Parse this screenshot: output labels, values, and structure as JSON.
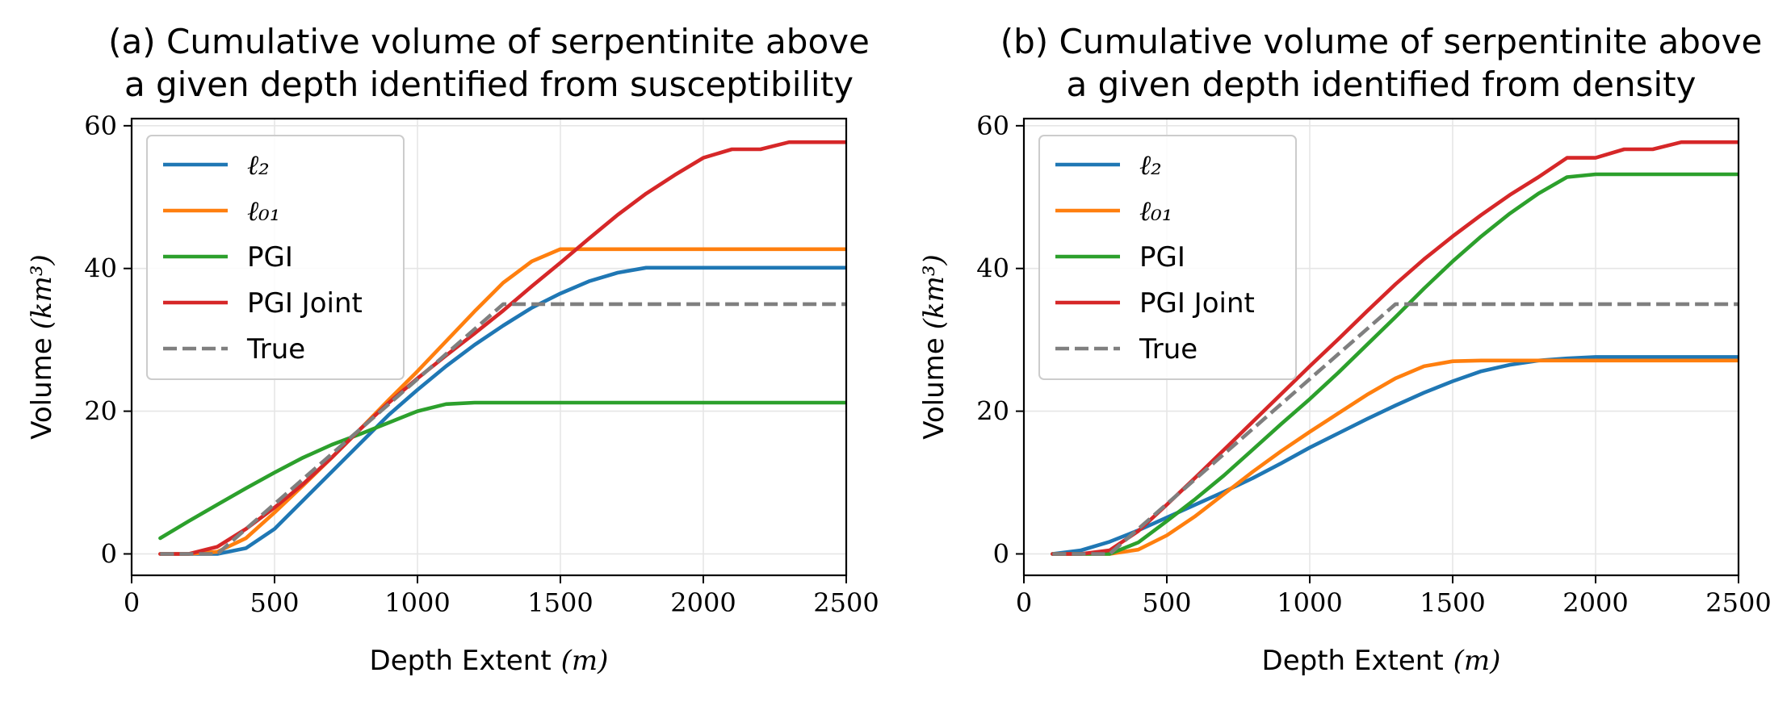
{
  "chart_data": [
    {
      "type": "line",
      "title_lines": [
        "(a) Cumulative volume of serpentinite above",
        "a given depth identified from susceptibility"
      ],
      "xlabel": "Depth Extent",
      "xlabel_unit": "(m)",
      "ylabel": "Volume",
      "ylabel_unit": "(km³)",
      "xlim": [
        0,
        2500
      ],
      "ylim": [
        -3,
        61
      ],
      "xticks": [
        0,
        500,
        1000,
        1500,
        2000,
        2500
      ],
      "yticks": [
        0,
        20,
        40,
        60
      ],
      "grid": true,
      "legend_position": "upper-left",
      "series": [
        {
          "name": "ℓ₂",
          "color": "#1f77b4",
          "dash": "solid",
          "x": [
            100,
            200,
            300,
            400,
            500,
            600,
            700,
            800,
            900,
            1000,
            1100,
            1200,
            1300,
            1400,
            1500,
            1600,
            1700,
            1800,
            1900,
            2000,
            2100,
            2200,
            2300,
            2400,
            2500
          ],
          "y": [
            0,
            0,
            0,
            0.8,
            3.5,
            7.5,
            11.5,
            15.5,
            19.5,
            23,
            26.3,
            29.3,
            32,
            34.5,
            36.5,
            38.2,
            39.4,
            40.1,
            40.1,
            40.1,
            40.1,
            40.1,
            40.1,
            40.1,
            40.1
          ]
        },
        {
          "name": "ℓ₀₁",
          "color": "#ff7f0e",
          "dash": "solid",
          "x": [
            100,
            200,
            300,
            400,
            500,
            600,
            700,
            800,
            900,
            1000,
            1100,
            1200,
            1300,
            1400,
            1500,
            1600,
            1700,
            1800,
            1900,
            2000,
            2100,
            2200,
            2300,
            2400,
            2500
          ],
          "y": [
            0,
            0,
            0.3,
            2.2,
            5.8,
            9.6,
            13.5,
            17.5,
            21.6,
            25.6,
            29.8,
            34,
            38,
            41,
            42.7,
            42.7,
            42.7,
            42.7,
            42.7,
            42.7,
            42.7,
            42.7,
            42.7,
            42.7,
            42.7
          ]
        },
        {
          "name": "PGI",
          "color": "#2ca02c",
          "dash": "solid",
          "x": [
            100,
            200,
            300,
            400,
            500,
            600,
            700,
            800,
            900,
            1000,
            1100,
            1200,
            1300,
            1400,
            1500,
            1600,
            1700,
            1800,
            1900,
            2000,
            2100,
            2200,
            2300,
            2400,
            2500
          ],
          "y": [
            2.2,
            4.6,
            6.9,
            9.2,
            11.4,
            13.5,
            15.3,
            16.8,
            18.4,
            20,
            21,
            21.2,
            21.2,
            21.2,
            21.2,
            21.2,
            21.2,
            21.2,
            21.2,
            21.2,
            21.2,
            21.2,
            21.2,
            21.2,
            21.2
          ]
        },
        {
          "name": "PGI Joint",
          "color": "#d62728",
          "dash": "solid",
          "x": [
            100,
            200,
            300,
            400,
            500,
            600,
            700,
            800,
            900,
            1000,
            1100,
            1200,
            1300,
            1400,
            1500,
            1600,
            1700,
            1800,
            1900,
            2000,
            2100,
            2200,
            2300,
            2400,
            2500
          ],
          "y": [
            0,
            0,
            1,
            3.5,
            6.5,
            9.8,
            13.5,
            17.5,
            21.2,
            24.6,
            27.8,
            30.9,
            34.1,
            37.5,
            40.8,
            44.2,
            47.5,
            50.5,
            53.1,
            55.5,
            56.7,
            56.7,
            57.7,
            57.7,
            57.7
          ]
        },
        {
          "name": "True",
          "color": "#7f7f7f",
          "dash": "dashed",
          "x": [
            100,
            300,
            1300,
            2500
          ],
          "y": [
            0,
            0,
            35,
            35
          ]
        }
      ]
    },
    {
      "type": "line",
      "title_lines": [
        "(b) Cumulative volume of serpentinite above",
        "a given depth identified from density"
      ],
      "xlabel": "Depth Extent",
      "xlabel_unit": "(m)",
      "ylabel": "Volume",
      "ylabel_unit": "(km³)",
      "xlim": [
        0,
        2500
      ],
      "ylim": [
        -3,
        61
      ],
      "xticks": [
        0,
        500,
        1000,
        1500,
        2000,
        2500
      ],
      "yticks": [
        0,
        20,
        40,
        60
      ],
      "grid": true,
      "legend_position": "upper-left",
      "series": [
        {
          "name": "ℓ₂",
          "color": "#1f77b4",
          "dash": "solid",
          "x": [
            100,
            200,
            300,
            400,
            500,
            600,
            700,
            800,
            900,
            1000,
            1100,
            1200,
            1300,
            1400,
            1500,
            1600,
            1700,
            1800,
            1900,
            2000,
            2100,
            2200,
            2300,
            2400,
            2500
          ],
          "y": [
            0,
            0.5,
            1.7,
            3.3,
            5.1,
            6.9,
            8.7,
            10.6,
            12.7,
            14.9,
            16.9,
            18.9,
            20.8,
            22.6,
            24.2,
            25.6,
            26.5,
            27.1,
            27.4,
            27.6,
            27.6,
            27.6,
            27.6,
            27.6,
            27.6
          ]
        },
        {
          "name": "ℓ₀₁",
          "color": "#ff7f0e",
          "dash": "solid",
          "x": [
            100,
            200,
            300,
            400,
            500,
            600,
            700,
            800,
            900,
            1000,
            1100,
            1200,
            1300,
            1400,
            1500,
            1600,
            1700,
            1800,
            1900,
            2000,
            2100,
            2200,
            2300,
            2400,
            2500
          ],
          "y": [
            0,
            0,
            0,
            0.6,
            2.6,
            5.3,
            8.4,
            11.5,
            14.4,
            17.1,
            19.7,
            22.3,
            24.6,
            26.3,
            27,
            27.1,
            27.1,
            27.1,
            27.1,
            27.1,
            27.1,
            27.1,
            27.1,
            27.1,
            27.1
          ]
        },
        {
          "name": "PGI",
          "color": "#2ca02c",
          "dash": "solid",
          "x": [
            100,
            200,
            300,
            400,
            500,
            600,
            700,
            800,
            900,
            1000,
            1100,
            1200,
            1300,
            1400,
            1500,
            1600,
            1700,
            1800,
            1900,
            2000,
            2100,
            2200,
            2300,
            2400,
            2500
          ],
          "y": [
            0,
            0,
            0,
            1.6,
            4.6,
            7.7,
            11,
            14.6,
            18.2,
            21.7,
            25.4,
            29.3,
            33.2,
            37.2,
            41,
            44.5,
            47.7,
            50.5,
            52.8,
            53.2,
            53.2,
            53.2,
            53.2,
            53.2,
            53.2
          ]
        },
        {
          "name": "PGI Joint",
          "color": "#d62728",
          "dash": "solid",
          "x": [
            100,
            200,
            300,
            400,
            500,
            600,
            700,
            800,
            900,
            1000,
            1100,
            1200,
            1300,
            1400,
            1500,
            1600,
            1700,
            1800,
            1900,
            2000,
            2100,
            2200,
            2300,
            2400,
            2500
          ],
          "y": [
            0,
            0,
            0.5,
            3.2,
            6.9,
            10.7,
            14.6,
            18.5,
            22.4,
            26.3,
            30.1,
            34,
            37.8,
            41.3,
            44.5,
            47.5,
            50.3,
            52.8,
            55.5,
            55.5,
            56.7,
            56.7,
            57.7,
            57.7,
            57.7
          ]
        },
        {
          "name": "True",
          "color": "#7f7f7f",
          "dash": "dashed",
          "x": [
            100,
            300,
            1300,
            2500
          ],
          "y": [
            0,
            0,
            35,
            35
          ]
        }
      ]
    }
  ]
}
